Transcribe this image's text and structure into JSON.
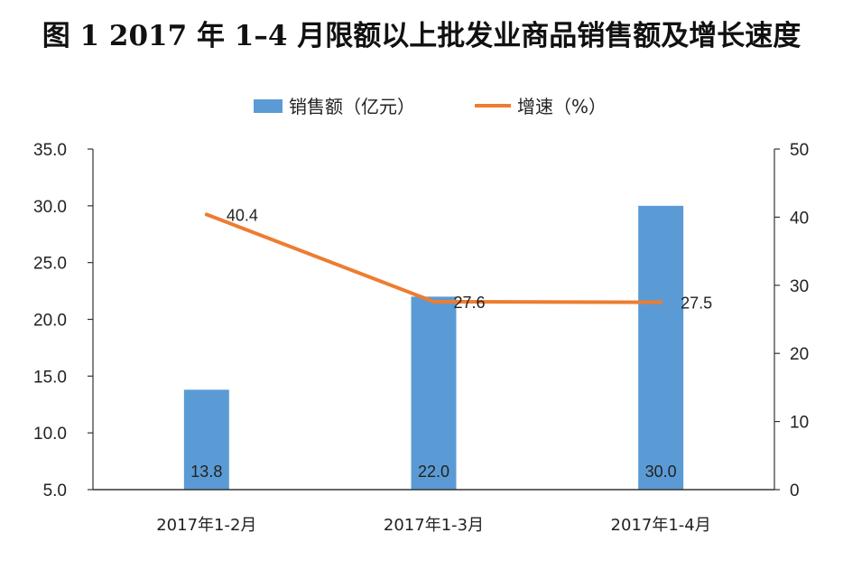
{
  "chart_data": {
    "type": "bar",
    "title": "图 1 2017 年 1–4 月限额以上批发业商品销售额及增长速度",
    "categories": [
      "2017年1-2月",
      "2017年1-3月",
      "2017年1-4月"
    ],
    "series": [
      {
        "name": "销售额（亿元）",
        "type": "bar",
        "axis": "left",
        "values": [
          13.8,
          22.0,
          30.0
        ],
        "value_labels": [
          "13.8",
          "22.0",
          "30.0"
        ]
      },
      {
        "name": "增速（%）",
        "type": "line",
        "axis": "right",
        "values": [
          40.4,
          27.6,
          27.5
        ],
        "value_labels": [
          "40.4",
          "27.6",
          "27.5"
        ]
      }
    ],
    "y_left": {
      "ylim": [
        5.0,
        35.0
      ],
      "ticks": [
        "5.0",
        "10.0",
        "15.0",
        "20.0",
        "25.0",
        "30.0",
        "35.0"
      ]
    },
    "y_right": {
      "ylim": [
        0,
        50
      ],
      "ticks": [
        "0",
        "10",
        "20",
        "30",
        "40",
        "50"
      ]
    },
    "legend_position": "top-center",
    "grid": false,
    "colors": {
      "bar": "#5b9bd5",
      "line": "#ed7d31"
    }
  }
}
